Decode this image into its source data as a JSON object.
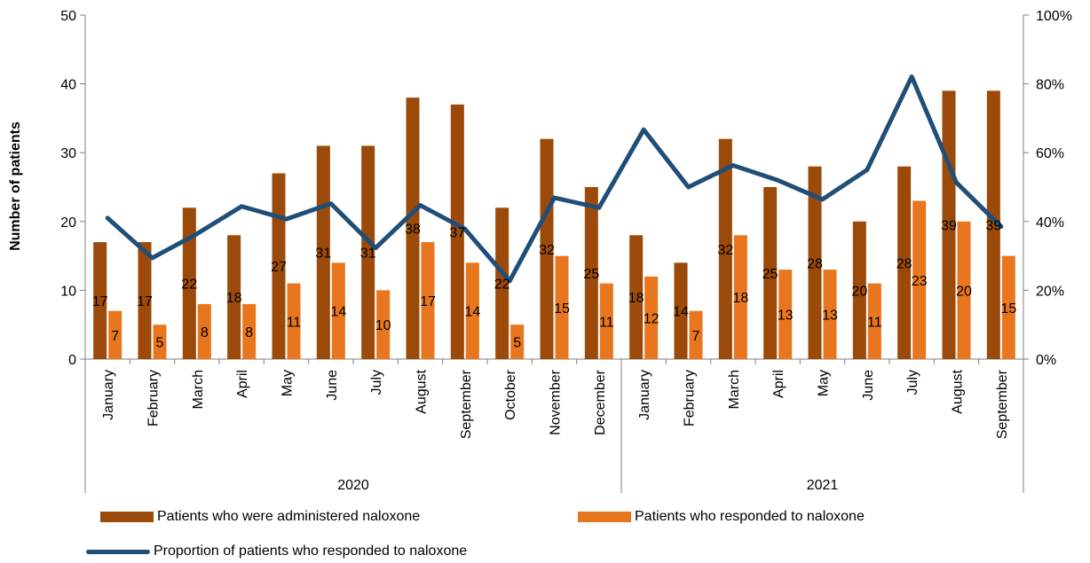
{
  "chart_data": {
    "type": "bar",
    "title": "",
    "ylabel": "Number of patients",
    "y2label": "",
    "ylim": [
      0,
      50
    ],
    "y2lim": [
      0,
      1
    ],
    "yticks": [
      "0",
      "10",
      "20",
      "30",
      "40",
      "50"
    ],
    "y2ticks": [
      "0%",
      "20%",
      "40%",
      "60%",
      "80%",
      "100%"
    ],
    "grid": false,
    "legend_position": "bottom",
    "categories": [
      "January",
      "February",
      "March",
      "April",
      "May",
      "June",
      "July",
      "August",
      "September",
      "October",
      "November",
      "December",
      "January",
      "February",
      "March",
      "April",
      "May",
      "June",
      "July",
      "August",
      "September"
    ],
    "groups": [
      {
        "label": "2020",
        "count": 12
      },
      {
        "label": "2021",
        "count": 9
      }
    ],
    "series": [
      {
        "name": "Patients who were administered naloxone",
        "type": "bar",
        "axis": "left",
        "color": "#9C4A0A",
        "values": [
          17,
          17,
          22,
          18,
          27,
          31,
          31,
          38,
          37,
          22,
          32,
          25,
          18,
          14,
          32,
          25,
          28,
          20,
          28,
          39,
          39
        ]
      },
      {
        "name": "Patients who responded to naloxone",
        "type": "bar",
        "axis": "left",
        "color": "#E8761E",
        "values": [
          7,
          5,
          8,
          8,
          11,
          14,
          10,
          17,
          14,
          5,
          15,
          11,
          12,
          7,
          18,
          13,
          13,
          11,
          23,
          20,
          15
        ]
      },
      {
        "name": "Proportion of patients who responded to naloxone",
        "type": "line",
        "axis": "right",
        "color": "#1F4E79",
        "values": [
          0.41,
          0.294,
          0.364,
          0.444,
          0.407,
          0.452,
          0.323,
          0.447,
          0.378,
          0.227,
          0.469,
          0.44,
          0.667,
          0.5,
          0.563,
          0.52,
          0.464,
          0.55,
          0.821,
          0.513,
          0.385
        ]
      }
    ]
  }
}
